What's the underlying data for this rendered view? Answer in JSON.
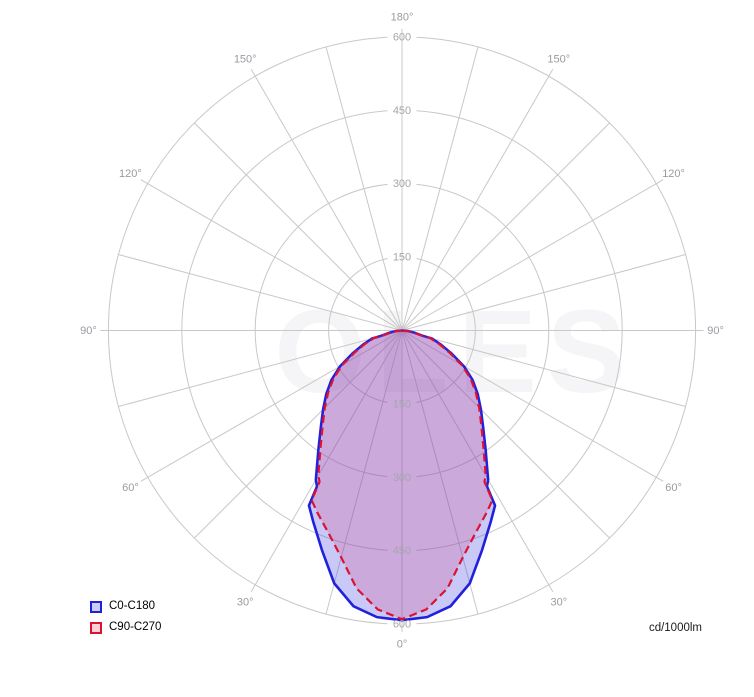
{
  "watermark": {
    "text": "OLES",
    "color": "rgba(110,110,140,0.07)"
  },
  "chart_data": {
    "type": "polar_photometric",
    "unit_label": "cd/1000lm",
    "radial_ticks": [
      150,
      300,
      450,
      600
    ],
    "radial_max": 600,
    "ring_step": 150,
    "angle_labels_deg": [
      0,
      30,
      60,
      90,
      120,
      150,
      180
    ],
    "minor_spoke_step_deg": 15,
    "labeled_spoke_step_deg": 30,
    "grid_color": "#c8c8c8",
    "tick_label_color": "#a6a6ac",
    "angle_label_color": "#9a9aa2",
    "legend_position": "bottom-left",
    "series": [
      {
        "name": "C0-C180",
        "stroke": "#2121dd",
        "fill": "rgba(40,40,225,0.25)",
        "legend_fill": "#ccccf5",
        "dash": "",
        "width": 2.6,
        "gamma_deg": [
          0,
          5,
          10,
          15,
          20,
          25,
          28,
          28.6,
          30,
          35,
          40,
          45,
          50,
          55,
          60,
          65,
          70,
          73,
          75,
          75.6,
          80,
          85,
          90
        ],
        "values": [
          592,
          588,
          572,
          535,
          478,
          430,
          405,
          363,
          352,
          298,
          258,
          228,
          202,
          176,
          146,
          112,
          85,
          70,
          64,
          44,
          25,
          12,
          0
        ]
      },
      {
        "name": "C90-C270",
        "stroke": "#dd1133",
        "fill": "rgba(208,87,143,0.28)",
        "legend_fill": "#fad2d8",
        "dash": "8 4.5",
        "width": 2.2,
        "gamma_deg": [
          0,
          5,
          10,
          15,
          20,
          25,
          28,
          28.6,
          30,
          35,
          40,
          45,
          50,
          55,
          60,
          65,
          70,
          73,
          75,
          75.6,
          80,
          85,
          90
        ],
        "values": [
          590,
          572,
          535,
          480,
          440,
          410,
          393,
          352,
          342,
          290,
          252,
          223,
          197,
          171,
          141,
          107,
          81,
          66,
          60,
          41,
          23,
          10,
          0
        ]
      }
    ]
  }
}
